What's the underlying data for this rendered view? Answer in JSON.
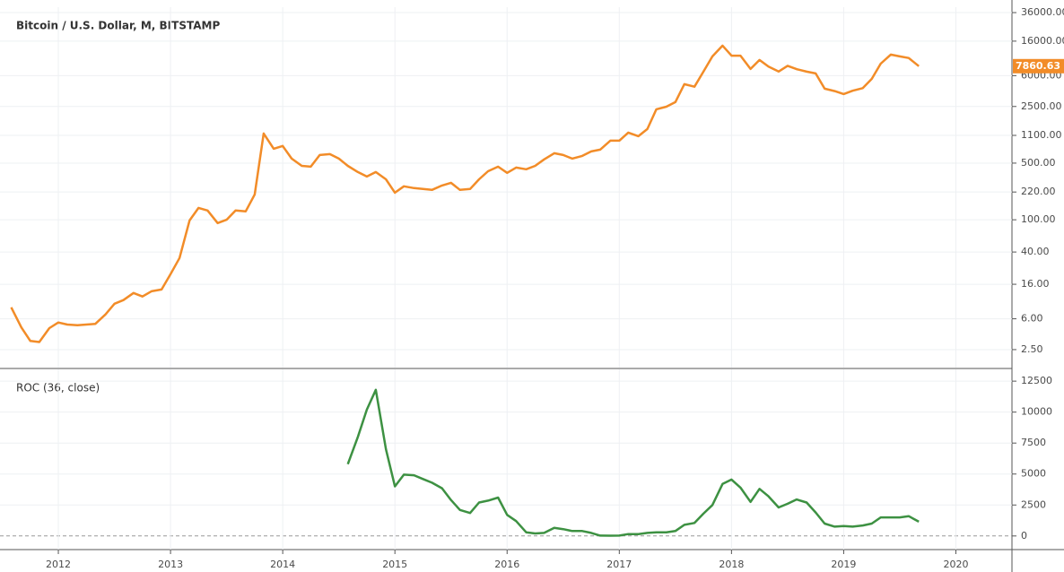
{
  "chart_data": [
    {
      "type": "line",
      "title": "Bitcoin / U.S. Dollar, M, BITSTAMP",
      "log_scale": true,
      "grid": true,
      "color": "#f28c28",
      "last_value_label": "7860.63",
      "xlim": [
        2011.48,
        2020.5
      ],
      "ylim": [
        1.5,
        42000
      ],
      "yticks": [
        {
          "value": 36000,
          "label": "36000.00"
        },
        {
          "value": 16000,
          "label": "16000.00"
        },
        {
          "value": 6000,
          "label": "6000.00"
        },
        {
          "value": 2500,
          "label": "2500.00"
        },
        {
          "value": 1100,
          "label": "1100.00"
        },
        {
          "value": 500,
          "label": "500.00"
        },
        {
          "value": 220,
          "label": "220.00"
        },
        {
          "value": 100,
          "label": "100.00"
        },
        {
          "value": 40,
          "label": "40.00"
        },
        {
          "value": 16,
          "label": "16.00"
        },
        {
          "value": 6,
          "label": "6.00"
        },
        {
          "value": 2.5,
          "label": "2.50"
        }
      ],
      "x": [
        2011.58,
        2011.67,
        2011.75,
        2011.83,
        2011.92,
        2012.0,
        2012.08,
        2012.17,
        2012.25,
        2012.33,
        2012.42,
        2012.5,
        2012.58,
        2012.67,
        2012.75,
        2012.83,
        2012.92,
        2013.0,
        2013.08,
        2013.17,
        2013.25,
        2013.33,
        2013.42,
        2013.5,
        2013.58,
        2013.67,
        2013.75,
        2013.83,
        2013.92,
        2014.0,
        2014.08,
        2014.17,
        2014.25,
        2014.33,
        2014.42,
        2014.5,
        2014.58,
        2014.67,
        2014.75,
        2014.83,
        2014.92,
        2015.0,
        2015.08,
        2015.17,
        2015.25,
        2015.33,
        2015.42,
        2015.5,
        2015.58,
        2015.67,
        2015.75,
        2015.83,
        2015.92,
        2016.0,
        2016.08,
        2016.17,
        2016.25,
        2016.33,
        2016.42,
        2016.5,
        2016.58,
        2016.67,
        2016.75,
        2016.83,
        2016.92,
        2017.0,
        2017.08,
        2017.17,
        2017.25,
        2017.33,
        2017.42,
        2017.5,
        2017.58,
        2017.67,
        2017.75,
        2017.83,
        2017.92,
        2018.0,
        2018.08,
        2018.17,
        2018.25,
        2018.33,
        2018.42,
        2018.5,
        2018.58,
        2018.67,
        2018.75,
        2018.83,
        2018.92,
        2019.0,
        2019.08,
        2019.17,
        2019.25,
        2019.33,
        2019.42,
        2019.5,
        2019.58,
        2019.67
      ],
      "values": [
        8.3,
        4.7,
        3.2,
        3.1,
        4.6,
        5.4,
        5.1,
        5.0,
        5.1,
        5.2,
        6.8,
        9.2,
        10.2,
        12.5,
        11.3,
        13.1,
        13.8,
        21.3,
        33.7,
        98,
        140,
        130,
        91,
        100,
        130,
        127,
        205,
        1160,
        753,
        815,
        569,
        463,
        452,
        630,
        645,
        569,
        463,
        388,
        342,
        388,
        316,
        216,
        259,
        246,
        240,
        234,
        265,
        286,
        234,
        240,
        316,
        397,
        452,
        379,
        441,
        420,
        463,
        555,
        663,
        630,
        569,
        614,
        697,
        733,
        946,
        946,
        1191,
        1074,
        1318,
        2307,
        2485,
        2831,
        4710,
        4380,
        6730,
        10380,
        14090,
        10600,
        10600,
        7260,
        9370,
        7750,
        6750,
        7930,
        7230,
        6730,
        6400,
        4150,
        3870,
        3560,
        3910,
        4210,
        5480,
        8450,
        10920,
        10380,
        9910,
        7860.63
      ]
    },
    {
      "type": "line",
      "title": "ROC (36, close)",
      "grid": true,
      "color": "#3d9142",
      "xlim": [
        2011.48,
        2020.5
      ],
      "ylim": [
        -1100,
        13450
      ],
      "xticks": [
        2012,
        2013,
        2014,
        2015,
        2016,
        2017,
        2018,
        2019,
        2020
      ],
      "yticks": [
        12500,
        10000,
        7500,
        5000,
        2500,
        0
      ],
      "x": [
        2014.58,
        2014.67,
        2014.75,
        2014.83,
        2014.92,
        2015.0,
        2015.08,
        2015.17,
        2015.25,
        2015.33,
        2015.42,
        2015.5,
        2015.58,
        2015.67,
        2015.75,
        2015.83,
        2015.92,
        2016.0,
        2016.08,
        2016.17,
        2016.25,
        2016.33,
        2016.42,
        2016.5,
        2016.58,
        2016.67,
        2016.75,
        2016.83,
        2016.92,
        2017.0,
        2017.08,
        2017.17,
        2017.25,
        2017.33,
        2017.42,
        2017.5,
        2017.58,
        2017.67,
        2017.75,
        2017.83,
        2017.92,
        2018.0,
        2018.08,
        2018.17,
        2018.25,
        2018.33,
        2018.42,
        2018.5,
        2018.58,
        2018.67,
        2018.75,
        2018.83,
        2018.92,
        2019.0,
        2019.08,
        2019.17,
        2019.25,
        2019.33,
        2019.42,
        2019.5,
        2019.58,
        2019.67
      ],
      "values": [
        5800,
        8000,
        10200,
        11800,
        7000,
        4000,
        4950,
        4900,
        4600,
        4300,
        3850,
        2900,
        2100,
        1850,
        2700,
        2850,
        3100,
        1700,
        1200,
        300,
        200,
        250,
        650,
        550,
        400,
        400,
        250,
        30,
        20,
        30,
        150,
        150,
        250,
        300,
        300,
        400,
        900,
        1050,
        1800,
        2500,
        4200,
        4550,
        3900,
        2750,
        3800,
        3200,
        2300,
        2600,
        2950,
        2700,
        1900,
        1000,
        750,
        800,
        750,
        850,
        1000,
        1500,
        1500,
        1500,
        1600,
        1150
      ]
    }
  ]
}
